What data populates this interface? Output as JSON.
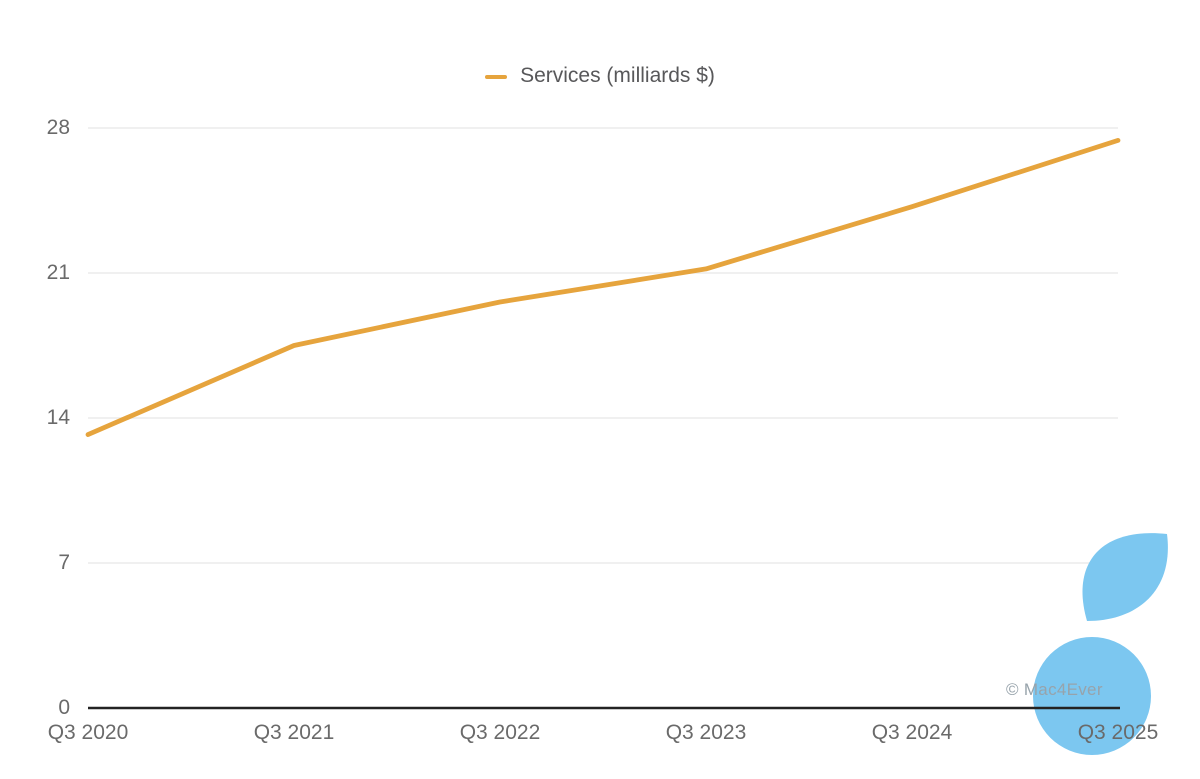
{
  "chart_data": {
    "type": "line",
    "x": [
      "Q3 2020",
      "Q3 2021",
      "Q3 2022",
      "Q3 2023",
      "Q3 2024",
      "Q3 2025"
    ],
    "series": [
      {
        "name": "Services (milliards $)",
        "values": [
          13.2,
          17.5,
          19.6,
          21.2,
          24.2,
          27.4
        ]
      }
    ],
    "ylim": [
      0,
      28
    ],
    "yticks": [
      0,
      7,
      14,
      21,
      28
    ],
    "grid": true,
    "legend_position": "top-center",
    "xlabel": "",
    "ylabel": ""
  },
  "watermark": {
    "text": "© Mac4Ever",
    "logo": "mac4ever-apple-logo"
  },
  "colors": {
    "line": "#E6A43D",
    "grid": "#ECECEC",
    "axis": "#232323",
    "tick_text": "#6A6A6A",
    "legend_text": "#58585A",
    "logo_blue": "#7CC7F0",
    "watermark_text": "#97A3AB",
    "background": "#FFFFFF"
  }
}
